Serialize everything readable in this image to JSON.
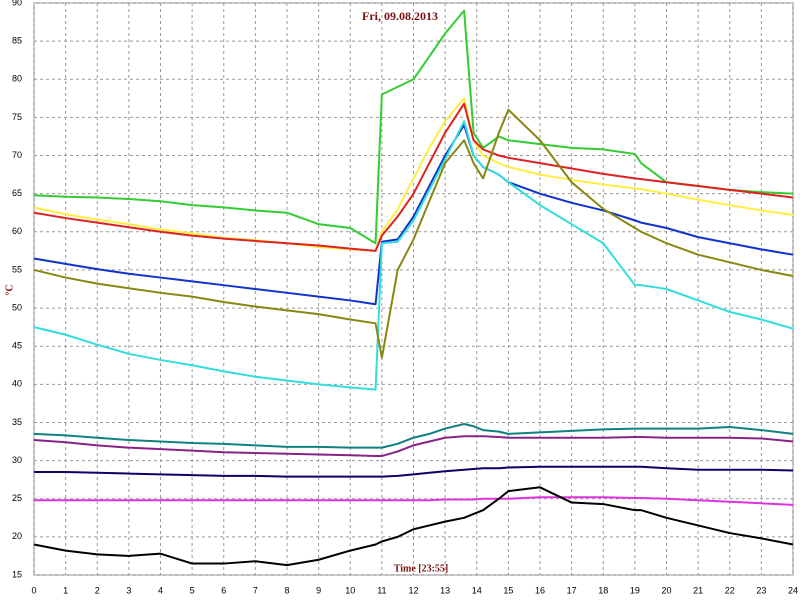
{
  "chart_data": {
    "type": "line",
    "title": "Fri, 09.08.2013",
    "x_label": "Time [23:55]",
    "y_label": "°C",
    "x": [
      0,
      1,
      2,
      3,
      4,
      5,
      6,
      7,
      8,
      9,
      10,
      10.8,
      11,
      11.5,
      12,
      12.5,
      13,
      13.6,
      13.9,
      14.2,
      14.7,
      15,
      16,
      17,
      18,
      19,
      19.2,
      20,
      21,
      22,
      23,
      24
    ],
    "xlim": [
      0,
      24
    ],
    "xticks": [
      0,
      1,
      2,
      3,
      4,
      5,
      6,
      7,
      8,
      9,
      10,
      11,
      12,
      13,
      14,
      15,
      16,
      17,
      18,
      19,
      20,
      21,
      22,
      23,
      24
    ],
    "ylim": [
      15,
      90
    ],
    "yticks": [
      15,
      20,
      25,
      30,
      35,
      40,
      45,
      50,
      55,
      60,
      65,
      70,
      75,
      80,
      85,
      90
    ],
    "grid": true,
    "series": [
      {
        "color": "#33cc33",
        "values": [
          64.8,
          64.6,
          64.5,
          64.3,
          64,
          63.5,
          63.2,
          62.8,
          62.5,
          61,
          60.5,
          58.5,
          78,
          79,
          80,
          83,
          86,
          89,
          73,
          71,
          72.5,
          72,
          71.5,
          71,
          70.8,
          70.2,
          69,
          66.5,
          66,
          65.5,
          65.2,
          65
        ]
      },
      {
        "color": "#ffee44",
        "values": [
          63.2,
          62.3,
          61.6,
          61,
          60.3,
          59.8,
          59.2,
          58.9,
          58.5,
          58,
          57.7,
          57.5,
          60,
          63,
          67,
          71,
          74.5,
          77.5,
          72,
          70,
          69,
          68.5,
          67.5,
          66.8,
          66.2,
          65.7,
          65.6,
          65,
          64.2,
          63.5,
          62.8,
          62.2
        ]
      },
      {
        "color": "#dd2222",
        "values": [
          62.5,
          61.8,
          61.2,
          60.6,
          60,
          59.5,
          59.1,
          58.8,
          58.5,
          58.2,
          57.8,
          57.5,
          59.5,
          62,
          65,
          69,
          73,
          76.8,
          72,
          70.8,
          70,
          69.7,
          69,
          68.3,
          67.6,
          67,
          66.9,
          66.5,
          66,
          65.5,
          65,
          64.5
        ]
      },
      {
        "color": "#1133cc",
        "values": [
          56.5,
          55.8,
          55.1,
          54.5,
          54,
          53.5,
          53,
          52.5,
          52,
          51.5,
          51,
          50.5,
          58.7,
          59,
          62,
          66,
          70,
          74,
          70,
          68.5,
          67.5,
          66.5,
          65,
          63.8,
          62.8,
          61.5,
          61.2,
          60.5,
          59.3,
          58.5,
          57.7,
          57
        ]
      },
      {
        "color": "#33dddd",
        "values": [
          47.5,
          46.5,
          45.2,
          44,
          43.2,
          42.5,
          41.7,
          41,
          40.5,
          40,
          39.6,
          39.3,
          58.5,
          58.7,
          61.5,
          65.5,
          69.5,
          74.5,
          70,
          68.5,
          67.5,
          66.5,
          63.5,
          61,
          58.5,
          53,
          53,
          52.5,
          51,
          49.5,
          48.5,
          47.3
        ]
      },
      {
        "color": "#888811",
        "values": [
          55,
          54,
          53.2,
          52.6,
          52,
          51.5,
          50.8,
          50.2,
          49.7,
          49.2,
          48.5,
          48,
          43.5,
          55,
          59,
          64,
          69,
          72,
          69,
          67,
          73,
          76,
          72,
          66.5,
          63,
          60.5,
          60,
          58.5,
          57,
          56,
          55,
          54.2
        ]
      },
      {
        "color": "#118080",
        "values": [
          33.5,
          33.3,
          33,
          32.7,
          32.5,
          32.3,
          32.2,
          32,
          31.8,
          31.8,
          31.7,
          31.7,
          31.7,
          32.2,
          33,
          33.5,
          34.2,
          34.8,
          34.5,
          34,
          33.8,
          33.5,
          33.7,
          33.9,
          34.1,
          34.2,
          34.2,
          34.2,
          34.2,
          34.4,
          34,
          33.5
        ]
      },
      {
        "color": "#882288",
        "values": [
          32.7,
          32.4,
          32,
          31.7,
          31.5,
          31.3,
          31.1,
          31,
          30.9,
          30.8,
          30.7,
          30.6,
          30.6,
          31.2,
          32,
          32.5,
          33,
          33.2,
          33.2,
          33.2,
          33.1,
          33,
          33,
          33,
          33,
          33.1,
          33.1,
          33,
          33,
          33,
          32.9,
          32.5
        ]
      },
      {
        "color": "#110066",
        "values": [
          28.5,
          28.5,
          28.4,
          28.3,
          28.2,
          28.1,
          28,
          28,
          27.9,
          27.9,
          27.9,
          27.9,
          27.9,
          28,
          28.2,
          28.4,
          28.6,
          28.8,
          28.9,
          29,
          29,
          29.1,
          29.2,
          29.2,
          29.2,
          29.2,
          29.2,
          29,
          28.8,
          28.8,
          28.8,
          28.7
        ]
      },
      {
        "color": "#dd33dd",
        "values": [
          24.8,
          24.8,
          24.8,
          24.8,
          24.8,
          24.8,
          24.8,
          24.8,
          24.8,
          24.8,
          24.8,
          24.8,
          24.8,
          24.8,
          24.8,
          24.8,
          24.9,
          24.9,
          24.9,
          25,
          25,
          25,
          25.2,
          25.2,
          25.2,
          25.1,
          25.1,
          25,
          24.8,
          24.6,
          24.4,
          24.2
        ]
      },
      {
        "color": "#000000",
        "values": [
          19,
          18.2,
          17.7,
          17.5,
          17.8,
          16.5,
          16.5,
          16.8,
          16.3,
          17,
          18.2,
          19,
          19.4,
          20,
          21,
          21.5,
          22,
          22.5,
          23,
          23.5,
          25,
          26,
          26.5,
          24.5,
          24.3,
          23.5,
          23.5,
          22.5,
          21.5,
          20.5,
          19.8,
          19
        ]
      }
    ]
  }
}
